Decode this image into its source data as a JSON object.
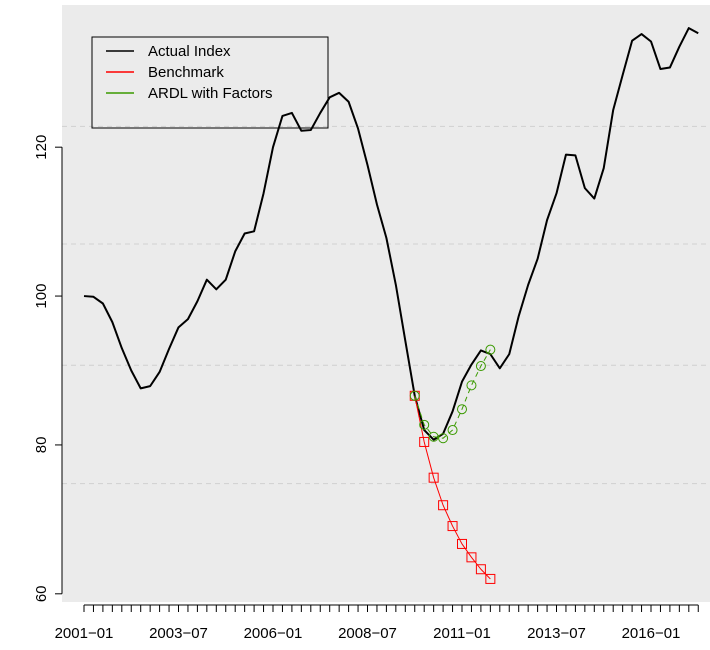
{
  "chart_data": {
    "type": "line",
    "categories": [
      "2001−01",
      null,
      null,
      null,
      null,
      null,
      null,
      null,
      null,
      null,
      "2003−07",
      null,
      null,
      null,
      null,
      null,
      null,
      null,
      null,
      null,
      "2006−01",
      null,
      null,
      null,
      null,
      null,
      null,
      null,
      null,
      null,
      "2008−07",
      null,
      null,
      null,
      null,
      null,
      null,
      null,
      null,
      null,
      "2011−01",
      null,
      null,
      null,
      null,
      null,
      null,
      null,
      null,
      null,
      "2013−07",
      null,
      null,
      null,
      null,
      null,
      null,
      null,
      null,
      null,
      "2016−01",
      null,
      null,
      null,
      null,
      null
    ],
    "series": [
      {
        "name": "Actual Index",
        "color": "#000000",
        "width": 2,
        "dash": false,
        "marker": null,
        "values": [
          100,
          99.9,
          99,
          96.5,
          93,
          90,
          87.6,
          87.9,
          89.8,
          92.9,
          95.8,
          96.9,
          99.3,
          102.2,
          100.9,
          102.2,
          106,
          108.4,
          108.7,
          113.8,
          120,
          124.2,
          124.6,
          122.2,
          122.3,
          124.6,
          126.7,
          127.3,
          126.1,
          122.5,
          117.6,
          112.3,
          107.8,
          101.5,
          94,
          86.6,
          82,
          80.7,
          81.5,
          84.5,
          88.5,
          90.8,
          92.7,
          92.2,
          90.3,
          92.2,
          97.3,
          101.5,
          105,
          110.2,
          113.8,
          119,
          118.9,
          114.5,
          113.1,
          117.2,
          125,
          129.7,
          134.3,
          135.2,
          134.2,
          130.5,
          130.7,
          133.5,
          136,
          135.3
        ]
      },
      {
        "name": "Benchmark",
        "color": "#ff0000",
        "width": 1,
        "dash": false,
        "marker": "square",
        "values": [
          null,
          null,
          null,
          null,
          null,
          null,
          null,
          null,
          null,
          null,
          null,
          null,
          null,
          null,
          null,
          null,
          null,
          null,
          null,
          null,
          null,
          null,
          null,
          null,
          null,
          null,
          null,
          null,
          null,
          null,
          null,
          null,
          null,
          null,
          null,
          86.6,
          80.4,
          75.6,
          71.9,
          69.1,
          66.7,
          64.9,
          63.3,
          62.0,
          null,
          null,
          null,
          null,
          null,
          null,
          null,
          null,
          null,
          null,
          null,
          null,
          null,
          null,
          null,
          null,
          null,
          null,
          null,
          null,
          null,
          null
        ]
      },
      {
        "name": "ARDL with Factors",
        "color": "#3a9a00",
        "width": 1,
        "dash": true,
        "marker": "circle",
        "values": [
          null,
          null,
          null,
          null,
          null,
          null,
          null,
          null,
          null,
          null,
          null,
          null,
          null,
          null,
          null,
          null,
          null,
          null,
          null,
          null,
          null,
          null,
          null,
          null,
          null,
          null,
          null,
          null,
          null,
          null,
          null,
          null,
          null,
          null,
          null,
          86.6,
          82.7,
          81.1,
          80.9,
          82.0,
          84.8,
          88.0,
          90.6,
          92.8,
          null,
          null,
          null,
          null,
          null,
          null,
          null,
          null,
          null,
          null,
          null,
          null,
          null,
          null,
          null,
          null,
          null,
          null,
          null,
          null,
          null,
          null
        ]
      }
    ],
    "ylim": [
      58.9,
      139.1
    ],
    "yticks": [
      60,
      80,
      100,
      120
    ],
    "hlines": [
      74.8,
      90.7,
      107,
      122.8
    ],
    "legend": "top-left"
  }
}
